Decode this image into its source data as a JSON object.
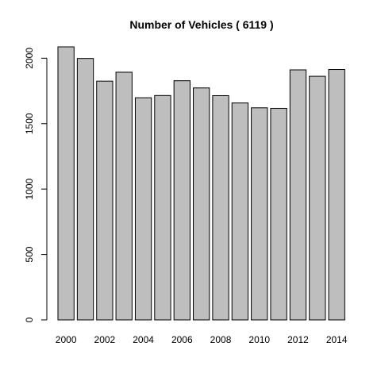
{
  "chart_data": {
    "type": "bar",
    "title": "Number of Vehicles ( 6119 )",
    "xlabel": "",
    "ylabel": "",
    "categories": [
      "2000",
      "2001",
      "2002",
      "2003",
      "2004",
      "2005",
      "2006",
      "2007",
      "2008",
      "2009",
      "2010",
      "2011",
      "2012",
      "2013",
      "2014"
    ],
    "values": [
      2087,
      1998,
      1825,
      1893,
      1698,
      1715,
      1828,
      1773,
      1714,
      1658,
      1621,
      1617,
      1911,
      1862,
      1914
    ],
    "x_tick_labels": [
      {
        "category": "2000",
        "label": "2000"
      },
      {
        "category": "2002",
        "label": "2002"
      },
      {
        "category": "2004",
        "label": "2004"
      },
      {
        "category": "2006",
        "label": "2006"
      },
      {
        "category": "2008",
        "label": "2008"
      },
      {
        "category": "2010",
        "label": "2010"
      },
      {
        "category": "2012",
        "label": "2012"
      },
      {
        "category": "2014",
        "label": "2014"
      }
    ],
    "y_ticks": [
      0,
      500,
      1000,
      1500,
      2000
    ],
    "y_tick_labels": [
      "0",
      "500",
      "1000",
      "1500",
      "2000"
    ],
    "ylim": [
      0,
      2087
    ],
    "grid": false,
    "legend": "none",
    "colors": {
      "bar_fill": "#bebebe",
      "bar_stroke": "#000000",
      "axis": "#000000",
      "background": "#ffffff"
    }
  }
}
